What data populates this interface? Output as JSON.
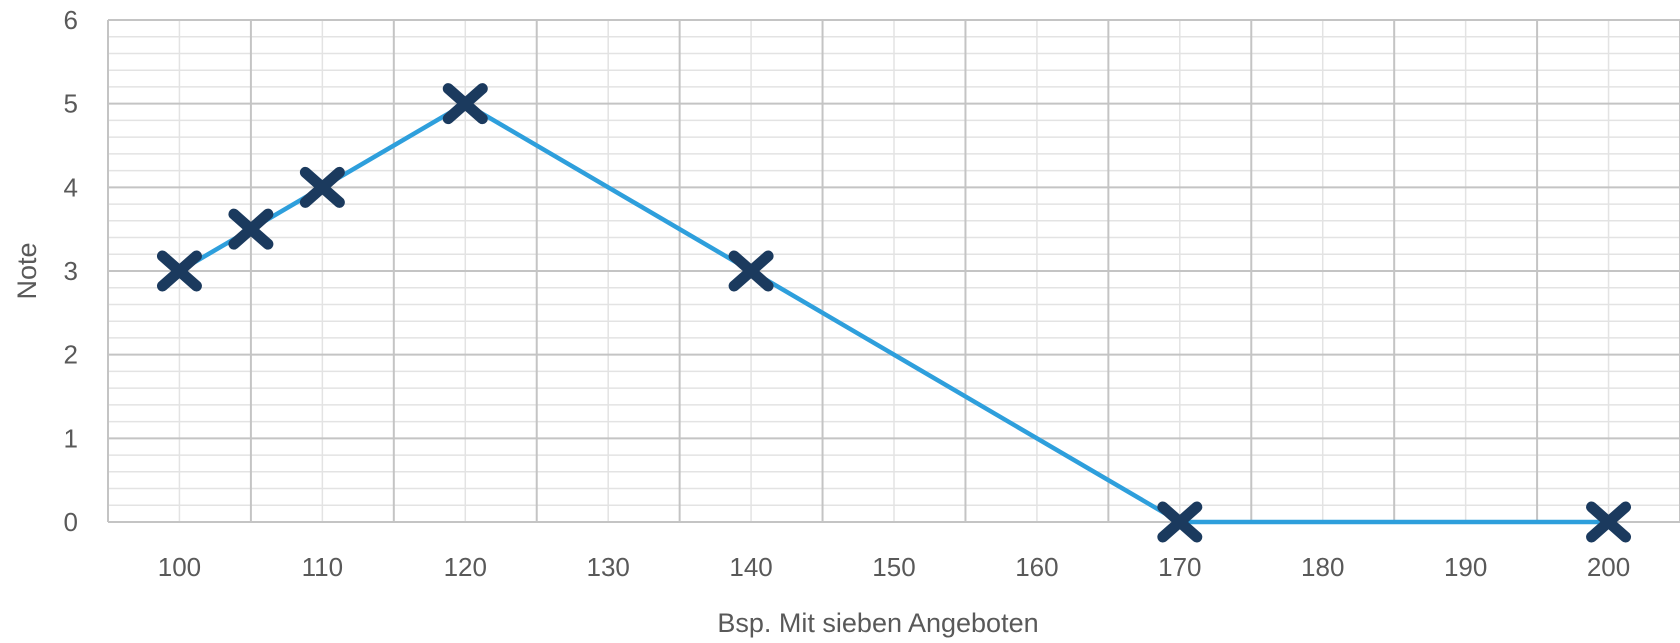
{
  "chart_data": {
    "type": "line",
    "title": "",
    "xlabel": "Bsp. Mit sieben Angeboten",
    "ylabel": "Note",
    "xlim": [
      95,
      205
    ],
    "ylim": [
      0,
      6
    ],
    "x_ticks": [
      "100",
      "110",
      "120",
      "130",
      "140",
      "150",
      "160",
      "170",
      "180",
      "190",
      "200"
    ],
    "y_ticks": [
      "0",
      "1",
      "2",
      "3",
      "4",
      "5",
      "6"
    ],
    "grid": true,
    "minor_grid": true,
    "legend": "none",
    "series": [
      {
        "line_color": "#2e9fdc",
        "marker": "x",
        "marker_color": "#1b3a5e",
        "points": [
          {
            "x": 100,
            "y": 3
          },
          {
            "x": 105,
            "y": 3.5
          },
          {
            "x": 110,
            "y": 4
          },
          {
            "x": 120,
            "y": 5
          },
          {
            "x": 140,
            "y": 3
          },
          {
            "x": 170,
            "y": 0
          },
          {
            "x": 200,
            "y": 0
          }
        ]
      }
    ]
  }
}
